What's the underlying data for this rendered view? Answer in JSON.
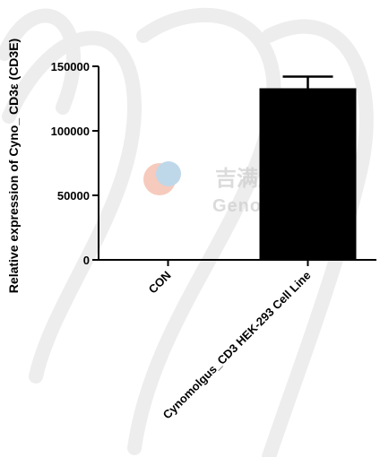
{
  "chart_data": {
    "type": "bar",
    "categories": [
      "CON",
      "Cynomolgus_CD3 HEK-293 Cell Line"
    ],
    "values": [
      0,
      133000
    ],
    "error": [
      0,
      9000
    ],
    "ylabel": "Relative expression of Cyno_ CD3ε (CD3E)",
    "ylim": [
      0,
      150000
    ],
    "yticks": [
      0,
      50000,
      100000,
      150000
    ],
    "ytick_labels": [
      "0",
      "50000",
      "100000",
      "150000"
    ],
    "bar_color": "#000000",
    "grid": false
  },
  "watermark": {
    "chinese": "吉满生物科技",
    "english": "Genomeditech"
  }
}
